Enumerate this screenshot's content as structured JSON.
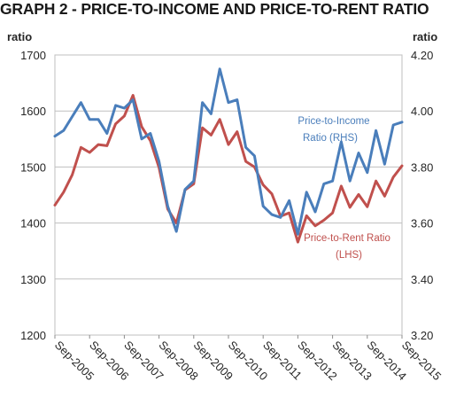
{
  "chart_data": {
    "type": "line",
    "title": "GRAPH 2 - PRICE-TO-INCOME AND PRICE-TO-RENT RATIO",
    "left_axis": {
      "label": "ratio",
      "ylim": [
        1200,
        1700
      ],
      "ticks": [
        1200,
        1300,
        1400,
        1500,
        1600,
        1700
      ]
    },
    "right_axis": {
      "label": "ratio",
      "ylim": [
        3.2,
        4.2
      ],
      "ticks": [
        "3.20",
        "3.40",
        "3.60",
        "3.80",
        "4.00",
        "4.20"
      ]
    },
    "x_ticks": [
      "Sep-2005",
      "Sep-2006",
      "Sep-2007",
      "Sep-2008",
      "Sep-2009",
      "Sep-2010",
      "Sep-2011",
      "Sep-2012",
      "Sep-2013",
      "Sep-2014",
      "Sep-2015"
    ],
    "x_range": [
      0,
      40
    ],
    "grid": true,
    "series": [
      {
        "name": "Price-to-Income Ratio (RHS)",
        "axis": "right",
        "color": "#4a7ebb",
        "values": [
          3.91,
          3.93,
          3.98,
          4.03,
          3.97,
          3.97,
          3.92,
          4.02,
          4.01,
          4.04,
          3.9,
          3.92,
          3.82,
          3.66,
          3.57,
          3.72,
          3.75,
          4.03,
          3.99,
          4.15,
          4.03,
          4.04,
          3.87,
          3.84,
          3.66,
          3.63,
          3.62,
          3.68,
          3.56,
          3.71,
          3.64,
          3.74,
          3.75,
          3.89,
          3.75,
          3.85,
          3.78,
          3.93,
          3.81,
          3.95,
          3.96
        ]
      },
      {
        "name": "Price-to-Rent Ratio (LHS)",
        "axis": "left",
        "color": "#c0504d",
        "values": [
          1432,
          1455,
          1486,
          1535,
          1526,
          1540,
          1538,
          1577,
          1591,
          1628,
          1572,
          1547,
          1499,
          1425,
          1400,
          1459,
          1470,
          1570,
          1557,
          1585,
          1540,
          1563,
          1510,
          1500,
          1468,
          1452,
          1412,
          1418,
          1366,
          1413,
          1395,
          1405,
          1418,
          1466,
          1428,
          1451,
          1429,
          1475,
          1448,
          1482,
          1502
        ]
      }
    ],
    "annotations": [
      {
        "series": "income",
        "lines": [
          "Price-to-Income",
          "Ratio (RHS)"
        ],
        "color": "#4a7ebb"
      },
      {
        "series": "rent",
        "lines": [
          "Price-to-Rent Ratio",
          "(LHS)"
        ],
        "color": "#c0504d"
      }
    ]
  }
}
